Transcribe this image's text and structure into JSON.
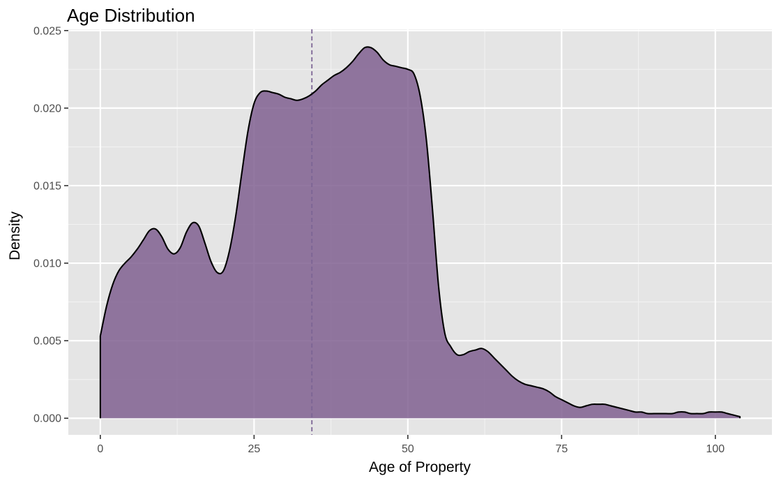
{
  "chart_data": {
    "type": "area",
    "title": "Age Distribution",
    "xlabel": "Age of Property",
    "ylabel": "Density",
    "xlim": [
      -5.2,
      109.2
    ],
    "ylim": [
      -0.00107,
      0.02508
    ],
    "x_ticks": [
      0,
      25,
      50,
      75,
      100
    ],
    "x_tick_labels": [
      "0",
      "25",
      "50",
      "75",
      "100"
    ],
    "y_ticks": [
      0,
      0.005,
      0.01,
      0.015,
      0.02,
      0.025
    ],
    "y_tick_labels": [
      "0.000",
      "0.005",
      "0.010",
      "0.015",
      "0.020",
      "0.025"
    ],
    "grid": true,
    "legend": "none",
    "reference_line": {
      "x": 34.4,
      "style": "dashed"
    },
    "series": [
      {
        "x": [
          0,
          1,
          2,
          3,
          4,
          5,
          6,
          7,
          8,
          9,
          10,
          11,
          12,
          13,
          14,
          15,
          16,
          17,
          18,
          19,
          20,
          21,
          22,
          23,
          24,
          25,
          26,
          27,
          28,
          29,
          30,
          31,
          32,
          33,
          34,
          35,
          36,
          37,
          38,
          39,
          40,
          41,
          42,
          43,
          44,
          45,
          46,
          47,
          48,
          49,
          50,
          51,
          52,
          53,
          54,
          55,
          56,
          57,
          58,
          59,
          60,
          61,
          62,
          63,
          64,
          65,
          66,
          67,
          68,
          69,
          70,
          71,
          72,
          73,
          74,
          75,
          76,
          77,
          78,
          79,
          80,
          81,
          82,
          83,
          84,
          85,
          86,
          87,
          88,
          89,
          90,
          91,
          92,
          93,
          94,
          95,
          96,
          97,
          98,
          99,
          100,
          101,
          102,
          103,
          104
        ],
        "values": [
          0.0053,
          0.0072,
          0.0086,
          0.0095,
          0.01,
          0.0104,
          0.0109,
          0.0115,
          0.0121,
          0.0122,
          0.0117,
          0.0109,
          0.0106,
          0.011,
          0.012,
          0.0126,
          0.0124,
          0.0113,
          0.0101,
          0.0094,
          0.0095,
          0.0108,
          0.013,
          0.0158,
          0.0185,
          0.0203,
          0.021,
          0.0211,
          0.021,
          0.0209,
          0.0207,
          0.0206,
          0.0205,
          0.0206,
          0.0208,
          0.0211,
          0.0215,
          0.0218,
          0.0221,
          0.0223,
          0.0226,
          0.023,
          0.0235,
          0.0239,
          0.0239,
          0.0236,
          0.0231,
          0.0228,
          0.0227,
          0.0226,
          0.0225,
          0.0222,
          0.0208,
          0.018,
          0.0135,
          0.0085,
          0.0055,
          0.0046,
          0.0041,
          0.0041,
          0.0043,
          0.0044,
          0.0045,
          0.0043,
          0.0039,
          0.0035,
          0.0031,
          0.0027,
          0.0024,
          0.0022,
          0.0021,
          0.002,
          0.0019,
          0.0017,
          0.0014,
          0.0012,
          0.001,
          0.0008,
          0.0007,
          0.0008,
          0.0009,
          0.0009,
          0.0009,
          0.0008,
          0.0007,
          0.0006,
          0.0005,
          0.0004,
          0.0004,
          0.0003,
          0.0003,
          0.0003,
          0.0003,
          0.0003,
          0.0004,
          0.0004,
          0.0003,
          0.0003,
          0.0003,
          0.0004,
          0.0004,
          0.0004,
          0.0003,
          0.0002,
          0.0001
        ]
      }
    ],
    "colors": {
      "fill": "#7b5a8c",
      "fill_opacity": 0.82,
      "line": "#000000",
      "reference_line": "#7c6494",
      "panel_background": "#e5e5e5",
      "grid_major": "#ffffff",
      "grid_minor": "#f2f2f2"
    }
  }
}
